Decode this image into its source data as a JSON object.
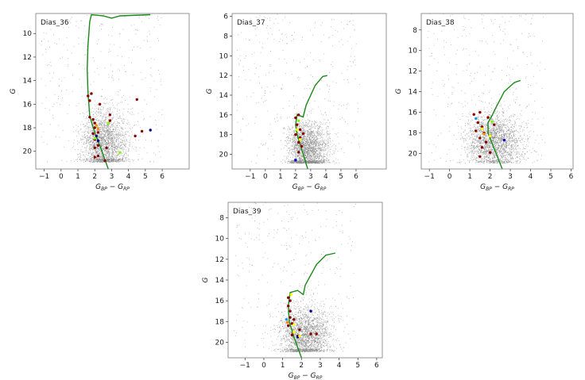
{
  "chart_data": [
    {
      "type": "scatter",
      "title": "Dias_36",
      "xlabel": "G_BP − G_RP",
      "ylabel": "G",
      "xlim": [
        -1.5,
        7.6
      ],
      "ylim": [
        21.5,
        8.3
      ],
      "xticks": [
        -1,
        0,
        1,
        2,
        3,
        4,
        5,
        6
      ],
      "yticks": [
        10,
        12,
        14,
        16,
        18,
        20
      ],
      "grid": false,
      "field_center": [
        2.3,
        19.3
      ],
      "isochrone": [
        [
          2.8,
          21.5
        ],
        [
          2.3,
          19.5
        ],
        [
          1.9,
          18
        ],
        [
          1.7,
          17
        ],
        [
          1.6,
          15
        ],
        [
          1.55,
          13
        ],
        [
          1.6,
          11
        ],
        [
          1.7,
          9
        ],
        [
          1.8,
          8.4
        ],
        [
          2.5,
          8.5
        ],
        [
          3,
          8.7
        ],
        [
          3.5,
          8.5
        ],
        [
          5.3,
          8.4
        ]
      ],
      "members": [
        {
          "x": 1.6,
          "y": 15.3,
          "c": "#8b0000"
        },
        {
          "x": 1.8,
          "y": 15.1,
          "c": "#8b0000"
        },
        {
          "x": 1.7,
          "y": 15.7,
          "c": "#8b0000"
        },
        {
          "x": 2.3,
          "y": 16.0,
          "c": "#8b0000"
        },
        {
          "x": 1.7,
          "y": 17.1,
          "c": "#8b0000"
        },
        {
          "x": 1.9,
          "y": 17.3,
          "c": "#8b0000"
        },
        {
          "x": 2.0,
          "y": 17.6,
          "c": "#8b0000"
        },
        {
          "x": 2.0,
          "y": 18.0,
          "c": "#8b0000"
        },
        {
          "x": 2.2,
          "y": 18.4,
          "c": "#8b0000"
        },
        {
          "x": 1.9,
          "y": 18.5,
          "c": "#8b0000"
        },
        {
          "x": 2.0,
          "y": 19.0,
          "c": "#8b0000"
        },
        {
          "x": 2.2,
          "y": 19.5,
          "c": "#8b0000"
        },
        {
          "x": 2.0,
          "y": 19.7,
          "c": "#8b0000"
        },
        {
          "x": 2.7,
          "y": 19.7,
          "c": "#8b0000"
        },
        {
          "x": 2.0,
          "y": 20.5,
          "c": "#8b0000"
        },
        {
          "x": 2.2,
          "y": 20.4,
          "c": "#8b0000"
        },
        {
          "x": 2.9,
          "y": 16.9,
          "c": "#8b0000"
        },
        {
          "x": 2.9,
          "y": 17.4,
          "c": "#8b0000"
        },
        {
          "x": 4.5,
          "y": 15.6,
          "c": "#8b0000"
        },
        {
          "x": 4.8,
          "y": 18.3,
          "c": "#8b0000"
        },
        {
          "x": 4.4,
          "y": 18.7,
          "c": "#8b0000"
        },
        {
          "x": 2.6,
          "y": 20.8,
          "c": "#8b0000"
        },
        {
          "x": 2.2,
          "y": 19.1,
          "c": "#00008b"
        },
        {
          "x": 5.3,
          "y": 18.2,
          "c": "#00008b"
        },
        {
          "x": 2.1,
          "y": 18.7,
          "c": "#00008b"
        },
        {
          "x": 2.1,
          "y": 17.8,
          "c": "#ff8c00"
        },
        {
          "x": 2.2,
          "y": 18.1,
          "c": "#ff8c00"
        },
        {
          "x": 2.8,
          "y": 17.6,
          "c": "#7cfc00"
        },
        {
          "x": 3.5,
          "y": 20.1,
          "c": "#7cfc00"
        },
        {
          "x": 2.0,
          "y": 18.9,
          "c": "#7cfc00"
        }
      ]
    },
    {
      "type": "scatter",
      "title": "Dias_37",
      "xlabel": "G_BP − G_RP",
      "ylabel": "G",
      "xlim": [
        -2.2,
        8.0
      ],
      "ylim": [
        21.5,
        5.7
      ],
      "xticks": [
        -1,
        0,
        1,
        2,
        3,
        4,
        5,
        6
      ],
      "yticks": [
        6,
        8,
        10,
        12,
        14,
        16,
        18,
        20
      ],
      "grid": false,
      "field_center": [
        2.5,
        19.5
      ],
      "isochrone": [
        [
          2.8,
          21.5
        ],
        [
          2.4,
          19.5
        ],
        [
          2.1,
          18
        ],
        [
          2.0,
          17
        ],
        [
          2.1,
          16
        ],
        [
          2.5,
          16.2
        ],
        [
          2.7,
          15
        ],
        [
          3.3,
          13
        ],
        [
          3.8,
          12.1
        ],
        [
          4.1,
          12
        ]
      ],
      "members": [
        {
          "x": 2.0,
          "y": 16.3,
          "c": "#8b0000"
        },
        {
          "x": 2.2,
          "y": 16.0,
          "c": "#8b0000"
        },
        {
          "x": 2.1,
          "y": 17.0,
          "c": "#8b0000"
        },
        {
          "x": 2.3,
          "y": 17.5,
          "c": "#8b0000"
        },
        {
          "x": 2.0,
          "y": 18.0,
          "c": "#8b0000"
        },
        {
          "x": 2.3,
          "y": 18.3,
          "c": "#8b0000"
        },
        {
          "x": 2.2,
          "y": 18.8,
          "c": "#8b0000"
        },
        {
          "x": 2.4,
          "y": 19.2,
          "c": "#8b0000"
        },
        {
          "x": 2.2,
          "y": 19.8,
          "c": "#8b0000"
        },
        {
          "x": 2.5,
          "y": 17.9,
          "c": "#8b0000"
        },
        {
          "x": 2.1,
          "y": 17.5,
          "c": "#ffff00"
        },
        {
          "x": 2.3,
          "y": 18.5,
          "c": "#ffff00"
        },
        {
          "x": 2.0,
          "y": 20.6,
          "c": "#0000cd"
        },
        {
          "x": 2.2,
          "y": 16.6,
          "c": "#7cfc00"
        }
      ]
    },
    {
      "type": "scatter",
      "title": "Dias_38",
      "xlabel": "G_BP − G_RP",
      "ylabel": "G",
      "xlim": [
        -1.4,
        6.1
      ],
      "ylim": [
        21.5,
        6.4
      ],
      "xticks": [
        -1,
        0,
        1,
        2,
        3,
        4,
        5,
        6
      ],
      "yticks": [
        8,
        10,
        12,
        14,
        16,
        18,
        20
      ],
      "grid": false,
      "field_center": [
        1.9,
        18.8
      ],
      "isochrone": [
        [
          2.6,
          21.5
        ],
        [
          2.2,
          19.5
        ],
        [
          1.9,
          18
        ],
        [
          1.9,
          17
        ],
        [
          2.1,
          16.3
        ],
        [
          2.3,
          15.5
        ],
        [
          2.7,
          14
        ],
        [
          3.2,
          13.1
        ],
        [
          3.5,
          12.9
        ]
      ],
      "members": [
        {
          "x": 1.2,
          "y": 16.2,
          "c": "#8b0000"
        },
        {
          "x": 1.5,
          "y": 16.0,
          "c": "#8b0000"
        },
        {
          "x": 1.4,
          "y": 17.0,
          "c": "#8b0000"
        },
        {
          "x": 1.6,
          "y": 17.4,
          "c": "#8b0000"
        },
        {
          "x": 1.3,
          "y": 17.8,
          "c": "#8b0000"
        },
        {
          "x": 1.7,
          "y": 18.0,
          "c": "#8b0000"
        },
        {
          "x": 1.5,
          "y": 18.5,
          "c": "#8b0000"
        },
        {
          "x": 1.8,
          "y": 18.9,
          "c": "#8b0000"
        },
        {
          "x": 1.6,
          "y": 19.4,
          "c": "#8b0000"
        },
        {
          "x": 2.0,
          "y": 19.9,
          "c": "#8b0000"
        },
        {
          "x": 1.9,
          "y": 16.5,
          "c": "#8b0000"
        },
        {
          "x": 2.2,
          "y": 17.2,
          "c": "#8b0000"
        },
        {
          "x": 1.5,
          "y": 20.3,
          "c": "#8b0000"
        },
        {
          "x": 1.3,
          "y": 16.6,
          "c": "#1e90ff"
        },
        {
          "x": 2.7,
          "y": 18.7,
          "c": "#0000cd"
        },
        {
          "x": 1.6,
          "y": 17.6,
          "c": "#ffff00"
        },
        {
          "x": 2.0,
          "y": 18.3,
          "c": "#ffff00"
        },
        {
          "x": 1.7,
          "y": 18.1,
          "c": "#ff8c00"
        },
        {
          "x": 2.1,
          "y": 16.9,
          "c": "#7cfc00"
        }
      ]
    },
    {
      "type": "scatter",
      "title": "Dias_39",
      "xlabel": "G_BP − G_RP",
      "ylabel": "G",
      "xlim": [
        -1.9,
        6.3
      ],
      "ylim": [
        21.5,
        6.5
      ],
      "xticks": [
        -1,
        0,
        1,
        2,
        3,
        4,
        5,
        6
      ],
      "yticks": [
        8,
        10,
        12,
        14,
        16,
        18,
        20
      ],
      "grid": false,
      "field_center": [
        1.9,
        19.3
      ],
      "isochrone": [
        [
          2.0,
          21.5
        ],
        [
          1.6,
          19.5
        ],
        [
          1.35,
          18
        ],
        [
          1.3,
          16.5
        ],
        [
          1.4,
          15.2
        ],
        [
          1.8,
          15
        ],
        [
          2.1,
          15.4
        ],
        [
          2.2,
          14.5
        ],
        [
          2.8,
          12.5
        ],
        [
          3.3,
          11.6
        ],
        [
          3.8,
          11.4
        ]
      ],
      "members": [
        {
          "x": 1.3,
          "y": 15.7,
          "c": "#8b0000"
        },
        {
          "x": 1.4,
          "y": 16.0,
          "c": "#8b0000"
        },
        {
          "x": 1.3,
          "y": 16.5,
          "c": "#8b0000"
        },
        {
          "x": 1.4,
          "y": 17.0,
          "c": "#8b0000"
        },
        {
          "x": 1.4,
          "y": 17.6,
          "c": "#8b0000"
        },
        {
          "x": 1.6,
          "y": 17.8,
          "c": "#8b0000"
        },
        {
          "x": 1.3,
          "y": 18.4,
          "c": "#8b0000"
        },
        {
          "x": 1.5,
          "y": 18.2,
          "c": "#8b0000"
        },
        {
          "x": 1.9,
          "y": 18.8,
          "c": "#8b0000"
        },
        {
          "x": 1.5,
          "y": 19.3,
          "c": "#8b0000"
        },
        {
          "x": 1.8,
          "y": 19.4,
          "c": "#8b0000"
        },
        {
          "x": 2.5,
          "y": 19.2,
          "c": "#8b0000"
        },
        {
          "x": 2.8,
          "y": 19.2,
          "c": "#8b0000"
        },
        {
          "x": 1.2,
          "y": 17.8,
          "c": "#1e90ff"
        },
        {
          "x": 2.5,
          "y": 17.0,
          "c": "#00008b"
        },
        {
          "x": 1.8,
          "y": 19.5,
          "c": "#00008b"
        },
        {
          "x": 1.25,
          "y": 18.1,
          "c": "#ff8c00"
        },
        {
          "x": 1.45,
          "y": 15.4,
          "c": "#ffff00"
        },
        {
          "x": 1.6,
          "y": 18.3,
          "c": "#ffff00"
        },
        {
          "x": 1.9,
          "y": 19.4,
          "c": "#ffff00"
        },
        {
          "x": 1.6,
          "y": 19.0,
          "c": "#ffff00"
        }
      ]
    }
  ],
  "colors": {
    "field": "#808080",
    "isochrone": "#1a8a1a",
    "frame": "#7a7a7a"
  }
}
